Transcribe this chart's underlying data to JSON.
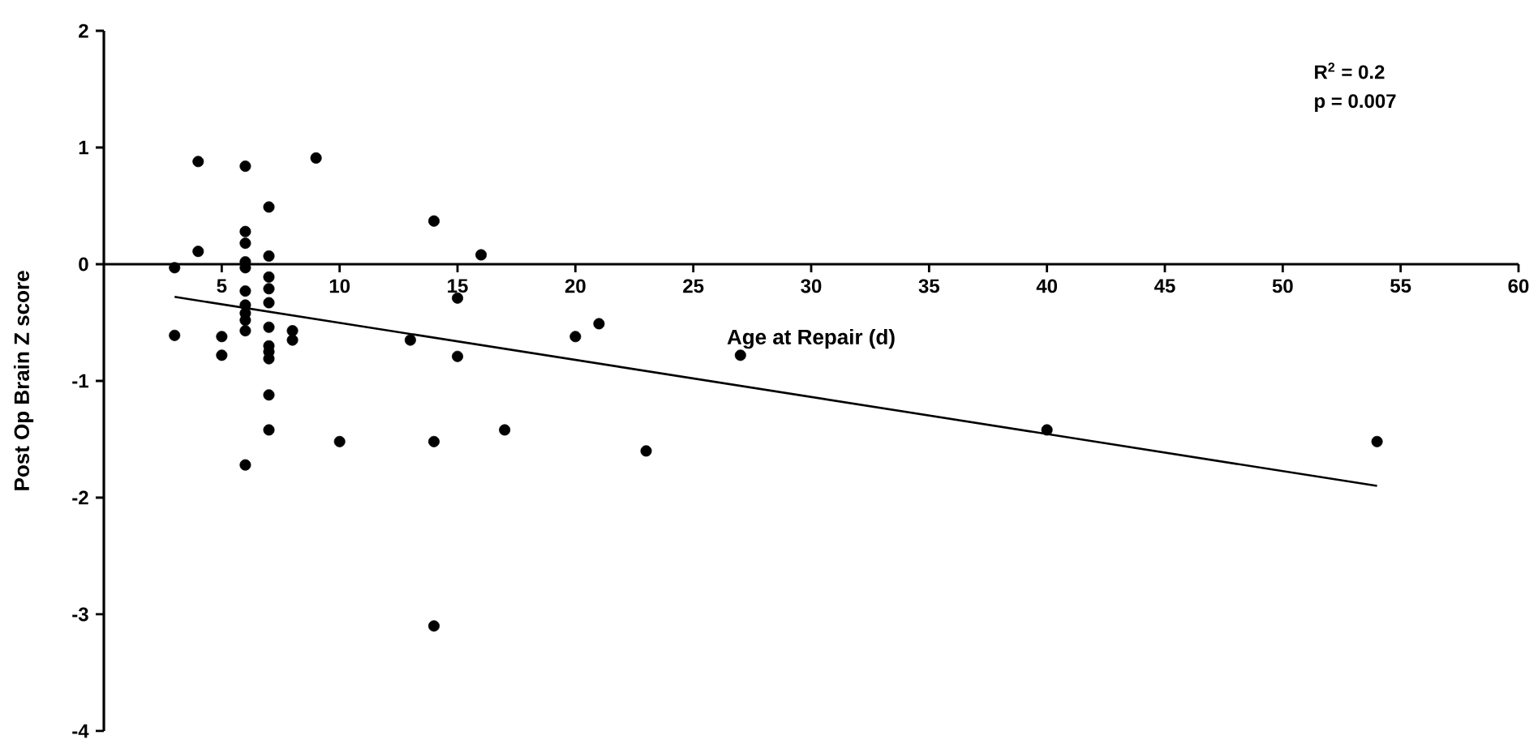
{
  "chart_data": {
    "type": "scatter",
    "xlabel": "Age at Repair (d)",
    "ylabel": "Post Op Brain Z score",
    "annotations": [
      "R$^{2}$ = 0.2",
      "p = 0.007"
    ],
    "xlim": [
      0,
      60
    ],
    "ylim": [
      -4,
      2
    ],
    "xticks": [
      5,
      10,
      15,
      20,
      25,
      30,
      35,
      40,
      45,
      50,
      55,
      60
    ],
    "yticks": [
      -4,
      -3,
      -2,
      -1,
      0,
      1,
      2
    ],
    "series": [
      {
        "color": "#000000",
        "marker": "circle",
        "x": [
          4,
          6,
          9,
          7,
          14,
          6,
          6,
          4,
          7,
          16,
          3,
          6,
          6,
          6,
          6,
          6,
          6,
          6,
          7,
          7,
          7,
          7,
          7,
          7,
          7,
          7,
          7,
          15,
          3,
          5,
          5,
          8,
          8,
          13,
          15,
          10,
          14,
          17,
          6,
          14,
          20,
          21,
          23,
          27,
          40,
          54
        ],
        "values": [
          0.88,
          0.84,
          0.91,
          0.49,
          0.37,
          0.28,
          0.18,
          0.11,
          0.07,
          0.08,
          -0.03,
          0.02,
          -0.03,
          -0.23,
          -0.35,
          -0.42,
          -0.48,
          -0.57,
          -0.11,
          -0.21,
          -0.33,
          -0.54,
          -0.7,
          -0.75,
          -0.81,
          -1.12,
          -1.42,
          -0.29,
          -0.61,
          -0.62,
          -0.78,
          -0.57,
          -0.65,
          -0.65,
          -0.79,
          -1.52,
          -1.52,
          -1.42,
          -1.72,
          -3.1,
          -0.62,
          -0.51,
          -1.6,
          -0.78,
          -1.42,
          -1.52
        ]
      },
      {
        "type": "line",
        "color": "#000000",
        "marker": "none",
        "x": [
          3,
          54
        ],
        "values": [
          -0.28,
          -1.9
        ]
      }
    ]
  }
}
